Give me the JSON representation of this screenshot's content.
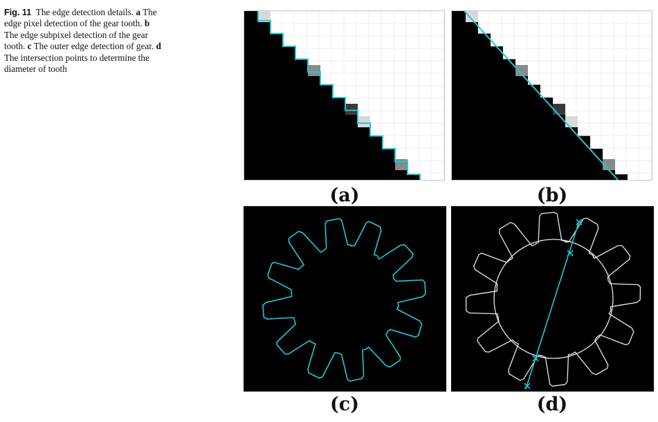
{
  "figure": {
    "caption_label": "Fig. 11",
    "caption_parts": [
      {
        "t": "The edge detection details. ",
        "b": false
      },
      {
        "t": "a",
        "b": true
      },
      {
        "t": " The edge pixel detection of the gear tooth. ",
        "b": false
      },
      {
        "t": "b",
        "b": true
      },
      {
        "t": " The edge subpixel detection of the gear tooth. ",
        "b": false
      },
      {
        "t": "c",
        "b": true
      },
      {
        "t": " The outer edge detection of gear. ",
        "b": false
      },
      {
        "t": "d",
        "b": true
      },
      {
        "t": " The intersection points to determine the diameter of tooth",
        "b": false
      }
    ],
    "panel_labels": {
      "a": "(a)",
      "b": "(b)",
      "c": "(c)",
      "d": "(d)"
    }
  },
  "colors": {
    "edge_line": "#22c8d8",
    "gear_outline": "#e8e8e8",
    "background_dark": "#000000",
    "pixel_light_gray": "#d9d9d9",
    "pixel_mid_gray": "#8a8a8a",
    "pixel_dark_gray": "#3a3a3a"
  }
}
